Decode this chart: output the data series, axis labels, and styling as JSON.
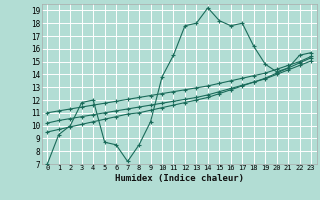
{
  "title": "",
  "xlabel": "Humidex (Indice chaleur)",
  "ylabel": "",
  "background_color": "#b2ddd4",
  "grid_color": "#d0ece7",
  "line_color": "#1a6b5a",
  "xlim": [
    -0.5,
    23.5
  ],
  "ylim": [
    7,
    19.5
  ],
  "xticks": [
    0,
    1,
    2,
    3,
    4,
    5,
    6,
    7,
    8,
    9,
    10,
    11,
    12,
    13,
    14,
    15,
    16,
    17,
    18,
    19,
    20,
    21,
    22,
    23
  ],
  "yticks": [
    7,
    8,
    9,
    10,
    11,
    12,
    13,
    14,
    15,
    16,
    17,
    18,
    19
  ],
  "jagged_x": [
    0,
    1,
    2,
    3,
    4,
    5,
    6,
    7,
    8,
    9,
    10,
    11,
    12,
    13,
    14,
    15,
    16,
    17,
    18,
    19,
    20,
    21,
    22,
    23
  ],
  "jagged_y": [
    7.0,
    9.3,
    10.0,
    11.8,
    12.0,
    8.7,
    8.5,
    7.2,
    8.5,
    10.3,
    13.8,
    15.5,
    17.8,
    18.0,
    19.2,
    18.2,
    17.8,
    18.0,
    16.2,
    14.8,
    14.2,
    14.5,
    15.5,
    15.7
  ],
  "line1_x": [
    0,
    1,
    2,
    3,
    4,
    5,
    6,
    7,
    8,
    9,
    10,
    11,
    12,
    13,
    14,
    15,
    16,
    17,
    18,
    19,
    20,
    21,
    22,
    23
  ],
  "line1_y": [
    9.5,
    9.7,
    9.9,
    10.1,
    10.3,
    10.5,
    10.7,
    10.9,
    11.0,
    11.2,
    11.4,
    11.6,
    11.8,
    12.0,
    12.2,
    12.5,
    12.8,
    13.1,
    13.4,
    13.7,
    14.1,
    14.5,
    14.9,
    15.3
  ],
  "line2_x": [
    0,
    1,
    2,
    3,
    4,
    5,
    6,
    7,
    8,
    9,
    10,
    11,
    12,
    13,
    14,
    15,
    16,
    17,
    18,
    19,
    20,
    21,
    22,
    23
  ],
  "line2_y": [
    10.2,
    10.4,
    10.55,
    10.7,
    10.85,
    11.0,
    11.15,
    11.3,
    11.45,
    11.6,
    11.75,
    11.9,
    12.05,
    12.2,
    12.4,
    12.65,
    12.9,
    13.15,
    13.4,
    13.65,
    14.0,
    14.35,
    14.7,
    15.05
  ],
  "line3_x": [
    0,
    1,
    2,
    3,
    4,
    5,
    6,
    7,
    8,
    9,
    10,
    11,
    12,
    13,
    14,
    15,
    16,
    17,
    18,
    19,
    20,
    21,
    22,
    23
  ],
  "line3_y": [
    11.0,
    11.15,
    11.3,
    11.45,
    11.6,
    11.75,
    11.9,
    12.05,
    12.2,
    12.35,
    12.5,
    12.65,
    12.8,
    12.95,
    13.1,
    13.3,
    13.5,
    13.7,
    13.9,
    14.1,
    14.4,
    14.7,
    15.0,
    15.4
  ]
}
